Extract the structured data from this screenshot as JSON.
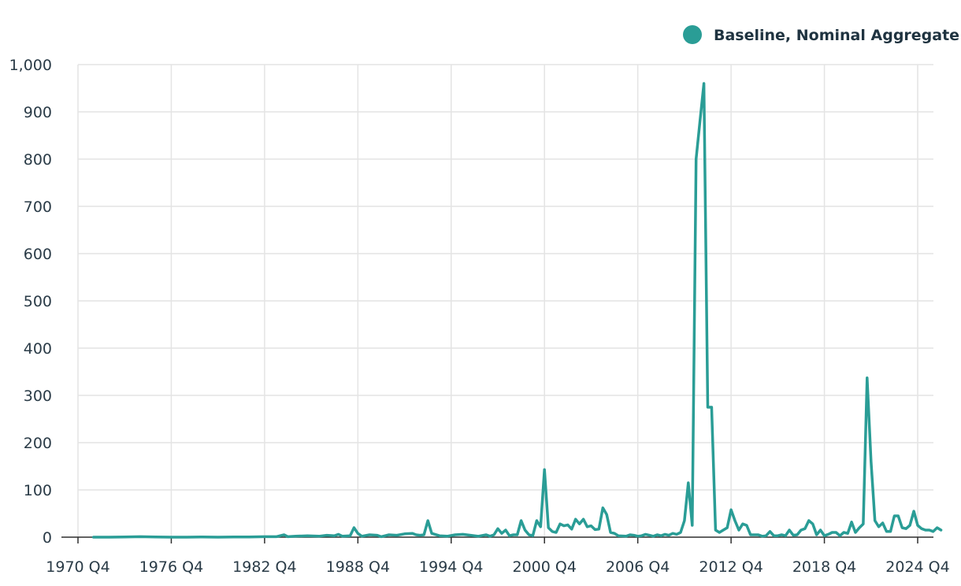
{
  "chart_data": {
    "type": "line",
    "legend": {
      "position": "top-right",
      "entries": [
        "Baseline, Nominal Aggregate"
      ]
    },
    "grid": true,
    "ylim": [
      0,
      1000
    ],
    "y_ticks": [
      0,
      100,
      200,
      300,
      400,
      500,
      600,
      700,
      800,
      900,
      1000
    ],
    "y_tick_labels": [
      "0",
      "100",
      "200",
      "300",
      "400",
      "500",
      "600",
      "700",
      "800",
      "900",
      "1,000"
    ],
    "xlim": [
      1970.75,
      2024.75
    ],
    "x_ticks": [
      1970.75,
      1976.75,
      1982.75,
      1988.75,
      1994.75,
      2000.75,
      2006.75,
      2012.75,
      2018.75,
      2024.75
    ],
    "x_tick_labels": [
      "1970 Q4",
      "1976 Q4",
      "1982 Q4",
      "1988 Q4",
      "1994 Q4",
      "2000 Q4",
      "2006 Q4",
      "2012 Q4",
      "2018 Q4",
      "2024 Q4"
    ],
    "series": [
      {
        "name": "Baseline, Nominal Aggregate",
        "color": "#2a9d96",
        "points": [
          [
            1971.75,
            0
          ],
          [
            1972.75,
            0
          ],
          [
            1973.75,
            0.5
          ],
          [
            1974.75,
            1
          ],
          [
            1975.75,
            0.5
          ],
          [
            1976.75,
            0
          ],
          [
            1977.75,
            0
          ],
          [
            1978.75,
            0.5
          ],
          [
            1979.75,
            0
          ],
          [
            1980.75,
            0.5
          ],
          [
            1981.75,
            0.5
          ],
          [
            1982.75,
            1
          ],
          [
            1983.5,
            1
          ],
          [
            1984.0,
            5
          ],
          [
            1984.25,
            1
          ],
          [
            1984.75,
            2
          ],
          [
            1985.5,
            3
          ],
          [
            1986.25,
            2
          ],
          [
            1986.75,
            4
          ],
          [
            1987.25,
            3
          ],
          [
            1987.5,
            6
          ],
          [
            1987.75,
            2
          ],
          [
            1988.25,
            3
          ],
          [
            1988.5,
            20
          ],
          [
            1988.75,
            8
          ],
          [
            1989.0,
            2
          ],
          [
            1989.5,
            5
          ],
          [
            1990.0,
            4
          ],
          [
            1990.25,
            1
          ],
          [
            1990.75,
            5
          ],
          [
            1991.25,
            4
          ],
          [
            1991.75,
            7
          ],
          [
            1992.25,
            8
          ],
          [
            1992.5,
            5
          ],
          [
            1992.75,
            4
          ],
          [
            1993.0,
            5
          ],
          [
            1993.25,
            35
          ],
          [
            1993.5,
            8
          ],
          [
            1994.0,
            3
          ],
          [
            1994.5,
            2
          ],
          [
            1995.0,
            5
          ],
          [
            1995.5,
            6
          ],
          [
            1996.0,
            4
          ],
          [
            1996.5,
            2
          ],
          [
            1997.0,
            5
          ],
          [
            1997.25,
            2
          ],
          [
            1997.5,
            5
          ],
          [
            1997.75,
            18
          ],
          [
            1998.0,
            8
          ],
          [
            1998.25,
            15
          ],
          [
            1998.5,
            3
          ],
          [
            1998.75,
            5
          ],
          [
            1999.0,
            5
          ],
          [
            1999.25,
            35
          ],
          [
            1999.5,
            15
          ],
          [
            1999.75,
            5
          ],
          [
            2000.0,
            3
          ],
          [
            2000.25,
            35
          ],
          [
            2000.5,
            22
          ],
          [
            2000.75,
            143
          ],
          [
            2001.0,
            20
          ],
          [
            2001.25,
            12
          ],
          [
            2001.5,
            10
          ],
          [
            2001.75,
            28
          ],
          [
            2002.0,
            24
          ],
          [
            2002.25,
            26
          ],
          [
            2002.5,
            17
          ],
          [
            2002.75,
            38
          ],
          [
            2003.0,
            28
          ],
          [
            2003.25,
            38
          ],
          [
            2003.5,
            22
          ],
          [
            2003.75,
            24
          ],
          [
            2004.0,
            16
          ],
          [
            2004.25,
            17
          ],
          [
            2004.5,
            62
          ],
          [
            2004.75,
            48
          ],
          [
            2005.0,
            10
          ],
          [
            2005.25,
            8
          ],
          [
            2005.5,
            3
          ],
          [
            2006.0,
            2
          ],
          [
            2006.25,
            5
          ],
          [
            2006.5,
            4
          ],
          [
            2006.75,
            2
          ],
          [
            2007.0,
            3
          ],
          [
            2007.25,
            6
          ],
          [
            2007.5,
            4
          ],
          [
            2007.75,
            2
          ],
          [
            2008.0,
            5
          ],
          [
            2008.25,
            3
          ],
          [
            2008.5,
            6
          ],
          [
            2008.75,
            4
          ],
          [
            2009.0,
            8
          ],
          [
            2009.25,
            6
          ],
          [
            2009.5,
            10
          ],
          [
            2009.75,
            35
          ],
          [
            2010.0,
            115
          ],
          [
            2010.25,
            25
          ],
          [
            2010.5,
            800
          ],
          [
            2010.75,
            880
          ],
          [
            2011.0,
            960
          ],
          [
            2011.25,
            275
          ],
          [
            2011.5,
            275
          ],
          [
            2011.75,
            15
          ],
          [
            2012.0,
            10
          ],
          [
            2012.25,
            15
          ],
          [
            2012.5,
            20
          ],
          [
            2012.75,
            58
          ],
          [
            2013.0,
            35
          ],
          [
            2013.25,
            15
          ],
          [
            2013.5,
            28
          ],
          [
            2013.75,
            25
          ],
          [
            2014.0,
            5
          ],
          [
            2014.25,
            5
          ],
          [
            2014.5,
            5
          ],
          [
            2014.75,
            2
          ],
          [
            2015.0,
            3
          ],
          [
            2015.25,
            12
          ],
          [
            2015.5,
            3
          ],
          [
            2015.75,
            3
          ],
          [
            2016.0,
            5
          ],
          [
            2016.25,
            3
          ],
          [
            2016.5,
            15
          ],
          [
            2016.75,
            4
          ],
          [
            2017.0,
            5
          ],
          [
            2017.25,
            15
          ],
          [
            2017.5,
            18
          ],
          [
            2017.75,
            35
          ],
          [
            2018.0,
            28
          ],
          [
            2018.25,
            5
          ],
          [
            2018.5,
            15
          ],
          [
            2018.75,
            3
          ],
          [
            2019.0,
            6
          ],
          [
            2019.25,
            10
          ],
          [
            2019.5,
            10
          ],
          [
            2019.75,
            3
          ],
          [
            2020.0,
            10
          ],
          [
            2020.25,
            8
          ],
          [
            2020.5,
            32
          ],
          [
            2020.75,
            10
          ],
          [
            2021.0,
            20
          ],
          [
            2021.25,
            28
          ],
          [
            2021.5,
            337
          ],
          [
            2021.75,
            160
          ],
          [
            2022.0,
            35
          ],
          [
            2022.25,
            22
          ],
          [
            2022.5,
            30
          ],
          [
            2022.75,
            12
          ],
          [
            2023.0,
            12
          ],
          [
            2023.25,
            45
          ],
          [
            2023.5,
            45
          ],
          [
            2023.75,
            20
          ],
          [
            2024.0,
            18
          ],
          [
            2024.25,
            25
          ],
          [
            2024.5,
            55
          ],
          [
            2024.75,
            25
          ],
          [
            2025.0,
            18
          ],
          [
            2025.25,
            15
          ],
          [
            2025.5,
            15
          ],
          [
            2025.75,
            12
          ],
          [
            2026.0,
            20
          ],
          [
            2026.25,
            15
          ]
        ]
      }
    ]
  }
}
